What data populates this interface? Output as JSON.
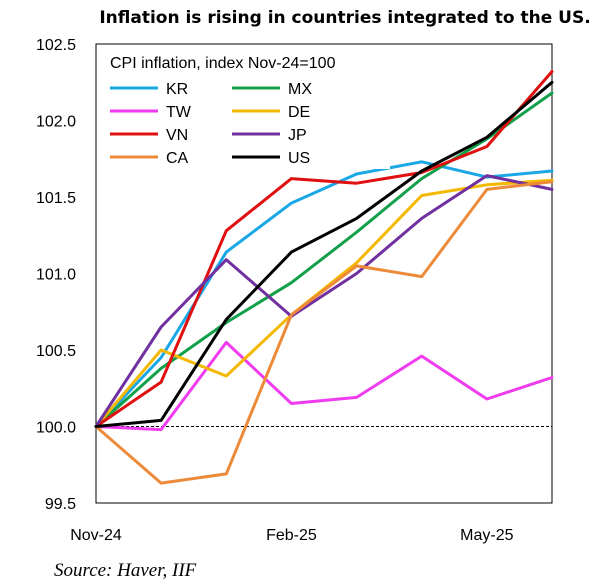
{
  "chart_data": {
    "type": "line",
    "title": "Inflation is rising in countries integrated to the US.",
    "subtitle": "CPI inflation, index Nov-24=100",
    "source": "Source: Haver, IIF",
    "x": [
      "Nov-24",
      "Dec-24",
      "Jan-25",
      "Feb-25",
      "Mar-25",
      "Apr-25",
      "May-25",
      "Jun-25"
    ],
    "x_tick_labels": [
      {
        "index": 0,
        "label": "Nov-24"
      },
      {
        "index": 3,
        "label": "Feb-25"
      },
      {
        "index": 6,
        "label": "May-25"
      }
    ],
    "ylim": [
      99.5,
      102.5
    ],
    "y_ticks": [
      "99.5",
      "100.0",
      "100.5",
      "101.0",
      "101.5",
      "102.0",
      "102.5"
    ],
    "reference_line": 100.0,
    "legend_placement": "top-left",
    "series": [
      {
        "name": "KR",
        "color": "#1aa7e6",
        "values": [
          100.0,
          100.45,
          101.14,
          101.46,
          101.65,
          101.73,
          101.63,
          101.67
        ]
      },
      {
        "name": "MX",
        "color": "#12a04a",
        "values": [
          100.0,
          100.38,
          100.68,
          100.94,
          101.27,
          101.62,
          101.88,
          102.18
        ]
      },
      {
        "name": "TW",
        "color": "#f03cf0",
        "values": [
          100.0,
          99.98,
          100.55,
          100.15,
          100.19,
          100.46,
          100.18,
          100.32
        ]
      },
      {
        "name": "DE",
        "color": "#f5b800",
        "values": [
          100.0,
          100.5,
          100.33,
          100.73,
          101.07,
          101.51,
          101.58,
          101.61
        ]
      },
      {
        "name": "VN",
        "color": "#e01010",
        "values": [
          100.0,
          100.29,
          101.28,
          101.62,
          101.59,
          101.66,
          101.83,
          102.32
        ]
      },
      {
        "name": "JP",
        "color": "#7030a0",
        "values": [
          100.0,
          100.65,
          101.09,
          100.72,
          101.0,
          101.36,
          101.64,
          101.55
        ]
      },
      {
        "name": "CA",
        "color": "#ed8a3a",
        "values": [
          100.0,
          99.63,
          99.69,
          100.73,
          101.05,
          100.98,
          101.55,
          101.6
        ]
      },
      {
        "name": "US",
        "color": "#000000",
        "values": [
          100.0,
          100.04,
          100.7,
          101.14,
          101.36,
          101.67,
          101.89,
          102.25
        ]
      }
    ]
  }
}
